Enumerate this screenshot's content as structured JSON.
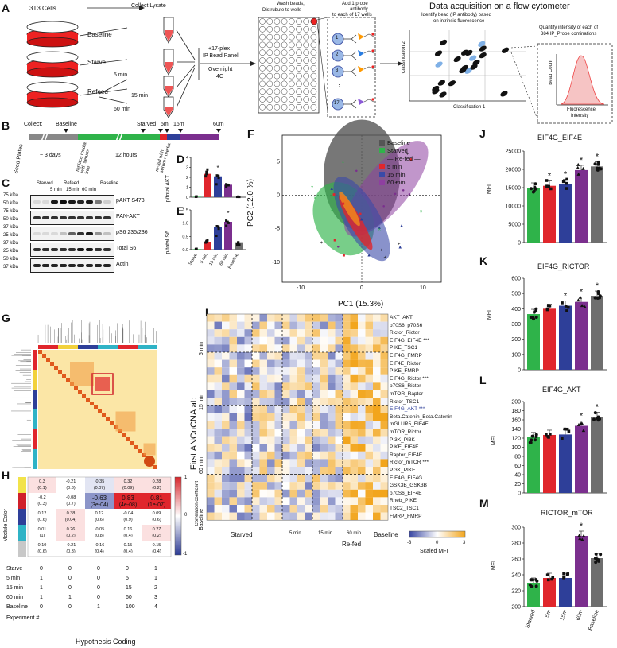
{
  "panel_labels": {
    "A": "A",
    "B": "B",
    "C": "C",
    "D": "D",
    "E": "E",
    "F": "F",
    "G": "G",
    "H": "H",
    "I": "I",
    "J": "J",
    "K": "K",
    "L": "L",
    "M": "M"
  },
  "panelA": {
    "cells": "3T3 Cells",
    "baseline": "Baseline",
    "starve": "Starve",
    "refeed": "Refeed",
    "collect": "Collect Lysate",
    "min5": "5 min",
    "min15": "15 min",
    "min60": "60 min",
    "panel_line1": "+17-plex",
    "panel_line2": "IP Bead Panel",
    "overnight1": "Overnight",
    "overnight2": "4C",
    "wash1": "Wash beads,",
    "wash2": "Distrubute to wells",
    "probe1": "Add 1 probe",
    "probe2": "antibody",
    "probe3": "to each of 17 wells",
    "acq_title": "Data acquisition on a flow cytometer",
    "identify1": "Identify bead (IP antibody) based",
    "identify2": "on intrinsic fluorescence",
    "quant1": "Quantify intensity of each of",
    "quant2": "384 IP_Probe cominations",
    "class1": "Classification 1",
    "class2": "Classification 2",
    "beadcount": "Bead Count",
    "fluor1": "Fluorescence",
    "fluor2": "Intensity",
    "wells": [
      "1",
      "2",
      "3",
      "⋮",
      "17"
    ]
  },
  "panelB": {
    "collect": "Collect:",
    "baseline": "Baseline",
    "starved": "Starved",
    "m5": "5m",
    "m15": "15m",
    "m60": "60m",
    "seed": "Seed Plates",
    "days": "~ 3 days",
    "replace": "replace media with serum-free",
    "hours": "12 hours",
    "refeed": "re-fed with serum+ media"
  },
  "panelC": {
    "header": [
      "Starved",
      "Refeed",
      "Baseline"
    ],
    "times": [
      "5 min",
      "15 min",
      "60 min"
    ],
    "rows": [
      {
        "kda": "75 kDa",
        "kda2": "50 kDa",
        "name": "pAKT S473"
      },
      {
        "kda": "75 kDa",
        "kda2": "50 kDa",
        "name": "PAN-AKT"
      },
      {
        "kda": "37 kDa",
        "kda2": "25 kDa",
        "name": "pS6 235/236"
      },
      {
        "kda": "37 kDa",
        "kda2": "25 kDa",
        "name": "Total S6"
      },
      {
        "kda": "50 kDa",
        "kda2": "37 kDa",
        "name": "Actin"
      }
    ]
  },
  "panelD": {
    "ylabel": "p/total AKT",
    "ticks": [
      "0",
      "1",
      "2",
      "3",
      "4"
    ],
    "star": "*"
  },
  "panelE": {
    "ylabel": "p/total S6",
    "ticks": [
      "0.0",
      "0.5",
      "1.0",
      "1.5"
    ],
    "xcats": [
      "Starve",
      "5 min",
      "15 min",
      "60 min",
      "Baseline"
    ],
    "star": "*"
  },
  "panelF": {
    "xlabel": "PC1 (15.3%)",
    "ylabel": "PC2 (12.0 %)",
    "xticks": [
      "-10",
      "0",
      "10"
    ],
    "yticks": [
      "5",
      "0",
      "-5",
      "-10"
    ],
    "legend": [
      "Baseline",
      "Starved",
      "— Re-fed —",
      "5 min",
      "15 min",
      "60 min"
    ]
  },
  "panelH": {
    "legend_title": "Correlation coefficent",
    "legend_ticks": [
      "1",
      "0",
      "-1"
    ],
    "ylabel": "Module Color",
    "rows": [
      [
        "0.3",
        "-0.21",
        "-0.35",
        "0.32",
        "0.28"
      ],
      [
        "(0.1)",
        "(0.3)",
        "(0.07)",
        "(0.09)",
        "(0.2)"
      ],
      [
        "-0.2",
        "-0.08",
        "-0.63",
        "0.83",
        "0.81"
      ],
      [
        "(0.3)",
        "(0.7)",
        "(3e-04)",
        "(4e-08)",
        "(1e-07)"
      ],
      [
        "0.12",
        "0.38",
        "0.12",
        "-0.04",
        "0.09"
      ],
      [
        "(0.6)",
        "(0.04)",
        "(0.6)",
        "(0.9)",
        "(0.6)"
      ],
      [
        "0.01",
        "0.26",
        "-0.05",
        "0.16",
        "0.27"
      ],
      [
        "(1)",
        "(0.2)",
        "(0.8)",
        "(0.4)",
        "(0.2)"
      ],
      [
        "0.10",
        "-0.21",
        "-0.16",
        "0.15",
        "0.15"
      ],
      [
        "(0.6)",
        "(0.3)",
        "(0.4)",
        "(0.4)",
        "(0.4)"
      ]
    ],
    "coding_rows": [
      "Starve",
      "5 min",
      "15 min",
      "60 min",
      "Baseline"
    ],
    "coding": [
      [
        "0",
        "0",
        "0",
        "0",
        "1"
      ],
      [
        "1",
        "0",
        "0",
        "5",
        "1"
      ],
      [
        "1",
        "0",
        "0",
        "15",
        "2"
      ],
      [
        "1",
        "1",
        "0",
        "60",
        "3"
      ],
      [
        "0",
        "0",
        "1",
        "100",
        "4"
      ]
    ],
    "xlabel": "Hypothesis Coding",
    "xlabel2": "Experiment #"
  },
  "panelI": {
    "ylabel": "First ANCnCNA at:",
    "ygroups": [
      "5 min",
      "15 min",
      "60 min",
      "Baseline"
    ],
    "xgroups": [
      "Starved",
      "5 min",
      "15 min",
      "60 min",
      "Baseline"
    ],
    "refed": "Re-fed",
    "scale_label": "Scaled MFI",
    "scale_ticks": [
      "-3",
      "0",
      "3"
    ],
    "rows": [
      "AKT_AKT",
      "p70S6_p70S6",
      "Rictor_Rictor",
      "EIF4G_EIF4E ***",
      "PIKE_TSC1",
      "EIF4G_FMRP",
      "EIF4E_Rictor",
      "PIKE_FMRP",
      "EIF4G_Rictor ***",
      "p70S6_Rictor",
      "mTOR_Raptor",
      "Rictor_TSC1",
      "EIF4G_AKT ***",
      "Beta.Catenin_Beta.Catenin",
      "mGLUR5_EIF4E",
      "mTOR_Rictor",
      "PI3K_PI3K",
      "PIKE_EIF4E",
      "Raptor_EIF4E",
      "Rictor_mTOR ***",
      "PI3K_PIKE",
      "EIF4G_EIF4G",
      "GSK3B_GSK3B",
      "p70S6_EIF4E",
      "Rheb_PIKE",
      "TSC2_TSC1",
      "FMRP_FMRP"
    ]
  },
  "bars": {
    "colors": [
      "#2fb34a",
      "#e0262c",
      "#2e3f99",
      "#7b2f8e",
      "#6e6e6e"
    ],
    "J": {
      "title": "EIF4G_EIF4E",
      "ylabel": "MFI",
      "ticks": [
        "0",
        "5000",
        "10000",
        "15000",
        "20000",
        "25000"
      ],
      "ymax": 25000,
      "values": [
        15000,
        15500,
        16000,
        19800,
        20800
      ],
      "stars": [
        "",
        "*",
        "*",
        "*",
        "*"
      ]
    },
    "K": {
      "title": "EIF4G_RICTOR",
      "ylabel": "MFI",
      "ticks": [
        "0",
        "100",
        "200",
        "300",
        "400",
        "500",
        "600"
      ],
      "ymax": 600,
      "values": [
        365,
        400,
        420,
        445,
        485
      ],
      "stars": [
        "",
        "",
        "*",
        "*",
        "*"
      ]
    },
    "L": {
      "title": "EIF4G_AKT",
      "ylabel": "MFI",
      "ticks": [
        "0",
        "20",
        "40",
        "60",
        "80",
        "100",
        "120",
        "140",
        "160",
        "180",
        "200"
      ],
      "ymin": 0,
      "ymax": 200,
      "values": [
        122,
        127,
        128,
        147,
        166
      ],
      "stars": [
        "",
        "",
        "",
        "*",
        "*"
      ]
    },
    "M": {
      "title": "RICTOR_mTOR",
      "ylabel": "MFI",
      "ticks": [
        "200",
        "220",
        "240",
        "260",
        "280",
        "300"
      ],
      "ymin": 200,
      "ymax": 300,
      "values": [
        230,
        236,
        236,
        289,
        261
      ],
      "stars": [
        "",
        "",
        "",
        "*",
        ""
      ],
      "xcats": [
        "Starved",
        "5m",
        "15m",
        "60m",
        "Baseline"
      ]
    },
    "D": {
      "values": [
        0.05,
        2.35,
        2.1,
        1.25,
        0.05
      ],
      "ymax": 4
    },
    "E": {
      "values": [
        0.02,
        0.3,
        0.85,
        1.05,
        0.28
      ],
      "ymax": 1.5
    }
  }
}
